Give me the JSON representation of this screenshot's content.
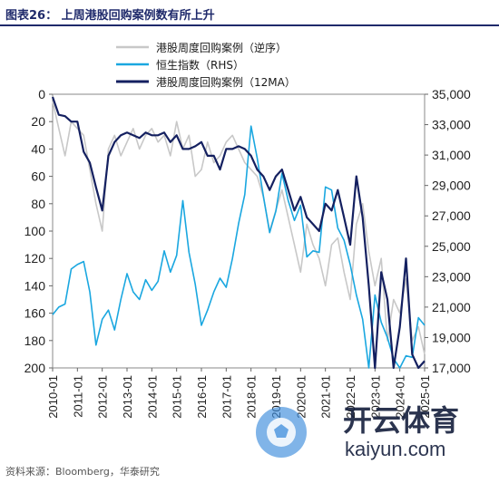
{
  "header": {
    "figure_title": "图表26： 上周港股回购案例数有所上升"
  },
  "footer": {
    "source": "资料来源：Bloomberg，华泰研究"
  },
  "watermark": {
    "brand_cn": "开云体育",
    "brand_url": "kaiyun.com"
  },
  "chart_data": {
    "type": "line",
    "title": "",
    "xlabel": "",
    "ylabel": "",
    "x_ticks": [
      "2010-01",
      "2011-01",
      "2012-01",
      "2013-01",
      "2014-01",
      "2015-01",
      "2016-01",
      "2017-01",
      "2018-01",
      "2019-01",
      "2020-01",
      "2021-01",
      "2022-01",
      "2023-01",
      "2024-01",
      "2025-01"
    ],
    "y_left": {
      "range": [
        0,
        200
      ],
      "inverted": true,
      "ticks": [
        0,
        20,
        40,
        60,
        80,
        100,
        120,
        140,
        160,
        180,
        200
      ]
    },
    "y_right": {
      "range": [
        17000,
        35000
      ],
      "ticks": [
        17000,
        19000,
        21000,
        23000,
        25000,
        27000,
        29000,
        31000,
        33000,
        35000
      ]
    },
    "legend": {
      "placement": "top-center"
    },
    "series": [
      {
        "name": "港股周度回购案例（逆序）",
        "axis": "left",
        "color": "#c8c8c8",
        "x": [
          "2010-01",
          "2010-04",
          "2010-07",
          "2010-10",
          "2011-01",
          "2011-04",
          "2011-07",
          "2011-10",
          "2012-01",
          "2012-04",
          "2012-07",
          "2012-10",
          "2013-01",
          "2013-04",
          "2013-07",
          "2013-10",
          "2014-01",
          "2014-04",
          "2014-07",
          "2014-10",
          "2015-01",
          "2015-04",
          "2015-07",
          "2015-10",
          "2016-01",
          "2016-04",
          "2016-07",
          "2016-10",
          "2017-01",
          "2017-04",
          "2017-07",
          "2017-10",
          "2018-01",
          "2018-04",
          "2018-07",
          "2018-10",
          "2019-01",
          "2019-04",
          "2019-07",
          "2019-10",
          "2020-01",
          "2020-04",
          "2020-07",
          "2020-10",
          "2021-01",
          "2021-04",
          "2021-07",
          "2021-10",
          "2022-01",
          "2022-04",
          "2022-07",
          "2022-10",
          "2023-01",
          "2023-04",
          "2023-07",
          "2023-10",
          "2024-01",
          "2024-04",
          "2024-07",
          "2024-10",
          "2025-01"
        ],
        "values": [
          5,
          25,
          45,
          20,
          25,
          30,
          55,
          80,
          100,
          40,
          30,
          45,
          35,
          25,
          40,
          30,
          25,
          35,
          30,
          45,
          20,
          40,
          30,
          60,
          55,
          35,
          50,
          45,
          35,
          30,
          40,
          50,
          55,
          60,
          75,
          100,
          85,
          70,
          90,
          110,
          130,
          95,
          110,
          120,
          140,
          110,
          105,
          130,
          150,
          95,
          80,
          115,
          140,
          120,
          180,
          150,
          160,
          135,
          180,
          170,
          190
        ]
      },
      {
        "name": "恒生指数（RHS）",
        "axis": "right",
        "color": "#1aa7e0",
        "x": [
          "2010-01",
          "2010-04",
          "2010-07",
          "2010-10",
          "2011-01",
          "2011-04",
          "2011-07",
          "2011-10",
          "2012-01",
          "2012-04",
          "2012-07",
          "2012-10",
          "2013-01",
          "2013-04",
          "2013-07",
          "2013-10",
          "2014-01",
          "2014-04",
          "2014-07",
          "2014-10",
          "2015-01",
          "2015-04",
          "2015-07",
          "2015-10",
          "2016-01",
          "2016-04",
          "2016-07",
          "2016-10",
          "2017-01",
          "2017-04",
          "2017-07",
          "2017-10",
          "2018-01",
          "2018-04",
          "2018-07",
          "2018-10",
          "2019-01",
          "2019-04",
          "2019-07",
          "2019-10",
          "2020-01",
          "2020-04",
          "2020-07",
          "2020-10",
          "2021-01",
          "2021-04",
          "2021-07",
          "2021-10",
          "2022-01",
          "2022-04",
          "2022-07",
          "2022-10",
          "2023-01",
          "2023-04",
          "2023-07",
          "2023-10",
          "2024-01",
          "2024-04",
          "2024-07",
          "2024-10",
          "2025-01"
        ],
        "values": [
          20500,
          21000,
          21200,
          23500,
          23800,
          24000,
          22000,
          18500,
          20200,
          20800,
          19500,
          21500,
          23200,
          22000,
          21500,
          22800,
          22100,
          22700,
          24700,
          23300,
          24400,
          28000,
          24600,
          22500,
          19800,
          20800,
          22000,
          22900,
          22300,
          24200,
          26500,
          28400,
          32900,
          30800,
          28300,
          25900,
          27300,
          29800,
          28000,
          26700,
          27700,
          24300,
          24700,
          24600,
          28900,
          28700,
          26200,
          25400,
          23800,
          21800,
          20200,
          16700,
          21800,
          20000,
          19000,
          17600,
          15800,
          17800,
          17700,
          20300,
          19800
        ]
      },
      {
        "name": "港股周度回购案例（12MA）",
        "axis": "left",
        "color": "#142060",
        "x": [
          "2010-01",
          "2010-04",
          "2010-07",
          "2010-10",
          "2011-01",
          "2011-04",
          "2011-07",
          "2011-10",
          "2012-01",
          "2012-04",
          "2012-07",
          "2012-10",
          "2013-01",
          "2013-04",
          "2013-07",
          "2013-10",
          "2014-01",
          "2014-04",
          "2014-07",
          "2014-10",
          "2015-01",
          "2015-04",
          "2015-07",
          "2015-10",
          "2016-01",
          "2016-04",
          "2016-07",
          "2016-10",
          "2017-01",
          "2017-04",
          "2017-07",
          "2017-10",
          "2018-01",
          "2018-04",
          "2018-07",
          "2018-10",
          "2019-01",
          "2019-04",
          "2019-07",
          "2019-10",
          "2020-01",
          "2020-04",
          "2020-07",
          "2020-10",
          "2021-01",
          "2021-04",
          "2021-07",
          "2021-10",
          "2022-01",
          "2022-04",
          "2022-07",
          "2022-10",
          "2023-01",
          "2023-04",
          "2023-07",
          "2023-10",
          "2024-01",
          "2024-04",
          "2024-07",
          "2024-10",
          "2025-01"
        ],
        "values": [
          2,
          15,
          16,
          20,
          20,
          42,
          50,
          68,
          85,
          45,
          35,
          30,
          28,
          30,
          32,
          28,
          30,
          30,
          28,
          35,
          30,
          40,
          40,
          38,
          35,
          45,
          45,
          55,
          40,
          40,
          38,
          40,
          45,
          55,
          60,
          70,
          60,
          55,
          70,
          85,
          75,
          90,
          95,
          100,
          80,
          85,
          70,
          90,
          110,
          60,
          90,
          140,
          200,
          130,
          150,
          200,
          170,
          120,
          190,
          200,
          195
        ]
      }
    ]
  }
}
